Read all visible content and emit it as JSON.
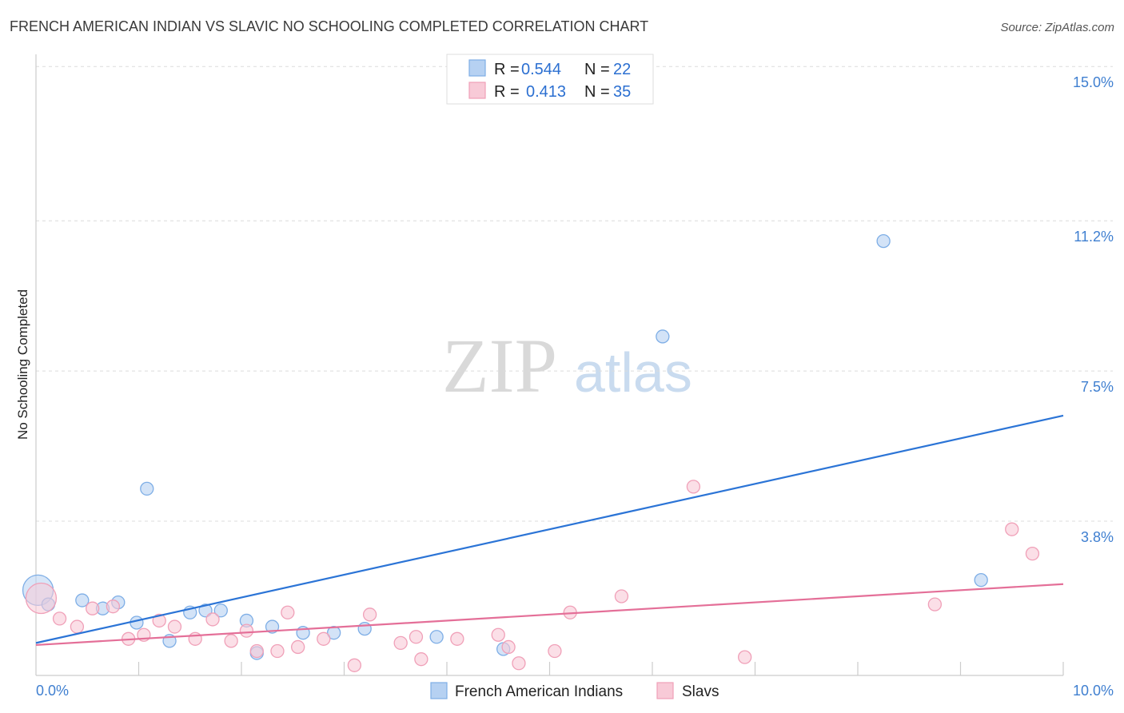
{
  "chart_data": {
    "type": "scatter",
    "title": "FRENCH AMERICAN INDIAN VS SLAVIC NO SCHOOLING COMPLETED CORRELATION CHART",
    "source": "Source: ZipAtlas.com",
    "xlabel": "",
    "ylabel": "No Schooling Completed",
    "xlim": [
      0,
      10
    ],
    "ylim": [
      0,
      15.3
    ],
    "x_tick_labels": {
      "left": "0.0%",
      "right": "10.0%"
    },
    "y_ticks": [
      {
        "value": 3.8,
        "label": "3.8%"
      },
      {
        "value": 7.5,
        "label": "7.5%"
      },
      {
        "value": 11.2,
        "label": "11.2%"
      },
      {
        "value": 15.0,
        "label": "15.0%"
      }
    ],
    "grid": true,
    "watermark": {
      "zip": "ZIP",
      "atlas": "atlas"
    },
    "legend": {
      "placement": "top-center",
      "rows": [
        {
          "r_label": "R = ",
          "r_value": "0.544",
          "n_label": "N = ",
          "n_value": "22"
        },
        {
          "r_label": "R = ",
          "r_value": "0.413",
          "n_label": "N = ",
          "n_value": "35"
        }
      ]
    },
    "series": [
      {
        "name": "French American Indians",
        "color": "#7eaee6",
        "fill": "#b6d1f2",
        "line_color": "#2b74d6",
        "trend": {
          "x0": 0.0,
          "y0": 0.8,
          "x1": 10.0,
          "y1": 6.4
        },
        "points": [
          {
            "x": 0.02,
            "y": 2.1,
            "big": true
          },
          {
            "x": 0.45,
            "y": 1.85
          },
          {
            "x": 0.65,
            "y": 1.65
          },
          {
            "x": 0.8,
            "y": 1.8
          },
          {
            "x": 0.98,
            "y": 1.3
          },
          {
            "x": 1.08,
            "y": 4.6
          },
          {
            "x": 1.3,
            "y": 0.85
          },
          {
            "x": 1.5,
            "y": 1.55
          },
          {
            "x": 1.65,
            "y": 1.6
          },
          {
            "x": 1.8,
            "y": 1.6
          },
          {
            "x": 2.05,
            "y": 1.35
          },
          {
            "x": 2.15,
            "y": 0.55
          },
          {
            "x": 2.3,
            "y": 1.2
          },
          {
            "x": 2.6,
            "y": 1.05
          },
          {
            "x": 2.9,
            "y": 1.05
          },
          {
            "x": 3.2,
            "y": 1.15
          },
          {
            "x": 3.9,
            "y": 0.95
          },
          {
            "x": 4.55,
            "y": 0.65
          },
          {
            "x": 6.1,
            "y": 8.35
          },
          {
            "x": 8.25,
            "y": 10.7
          },
          {
            "x": 9.2,
            "y": 2.35
          },
          {
            "x": 0.12,
            "y": 1.75
          }
        ]
      },
      {
        "name": "Slavs",
        "color": "#f0a0b8",
        "fill": "#f8cad7",
        "line_color": "#e46f98",
        "trend": {
          "x0": 0.0,
          "y0": 0.75,
          "x1": 10.0,
          "y1": 2.25
        },
        "points": [
          {
            "x": 0.05,
            "y": 1.9,
            "big": true
          },
          {
            "x": 0.23,
            "y": 1.4
          },
          {
            "x": 0.4,
            "y": 1.2
          },
          {
            "x": 0.55,
            "y": 1.65
          },
          {
            "x": 0.75,
            "y": 1.7
          },
          {
            "x": 0.9,
            "y": 0.9
          },
          {
            "x": 1.05,
            "y": 1.0
          },
          {
            "x": 1.2,
            "y": 1.35
          },
          {
            "x": 1.35,
            "y": 1.2
          },
          {
            "x": 1.55,
            "y": 0.9
          },
          {
            "x": 1.72,
            "y": 1.38
          },
          {
            "x": 1.9,
            "y": 0.85
          },
          {
            "x": 2.05,
            "y": 1.1
          },
          {
            "x": 2.15,
            "y": 0.6
          },
          {
            "x": 2.35,
            "y": 0.6
          },
          {
            "x": 2.55,
            "y": 0.7
          },
          {
            "x": 2.45,
            "y": 1.55
          },
          {
            "x": 2.8,
            "y": 0.9
          },
          {
            "x": 3.1,
            "y": 0.25
          },
          {
            "x": 3.25,
            "y": 1.5
          },
          {
            "x": 3.55,
            "y": 0.8
          },
          {
            "x": 3.7,
            "y": 0.95
          },
          {
            "x": 3.75,
            "y": 0.4
          },
          {
            "x": 4.1,
            "y": 0.9
          },
          {
            "x": 4.5,
            "y": 1.0
          },
          {
            "x": 4.6,
            "y": 0.7
          },
          {
            "x": 4.7,
            "y": 0.3
          },
          {
            "x": 5.05,
            "y": 0.6
          },
          {
            "x": 5.2,
            "y": 1.55
          },
          {
            "x": 5.7,
            "y": 1.95
          },
          {
            "x": 6.4,
            "y": 4.65
          },
          {
            "x": 6.9,
            "y": 0.45
          },
          {
            "x": 8.75,
            "y": 1.75
          },
          {
            "x": 9.5,
            "y": 3.6
          },
          {
            "x": 9.7,
            "y": 3.0
          }
        ]
      }
    ]
  }
}
